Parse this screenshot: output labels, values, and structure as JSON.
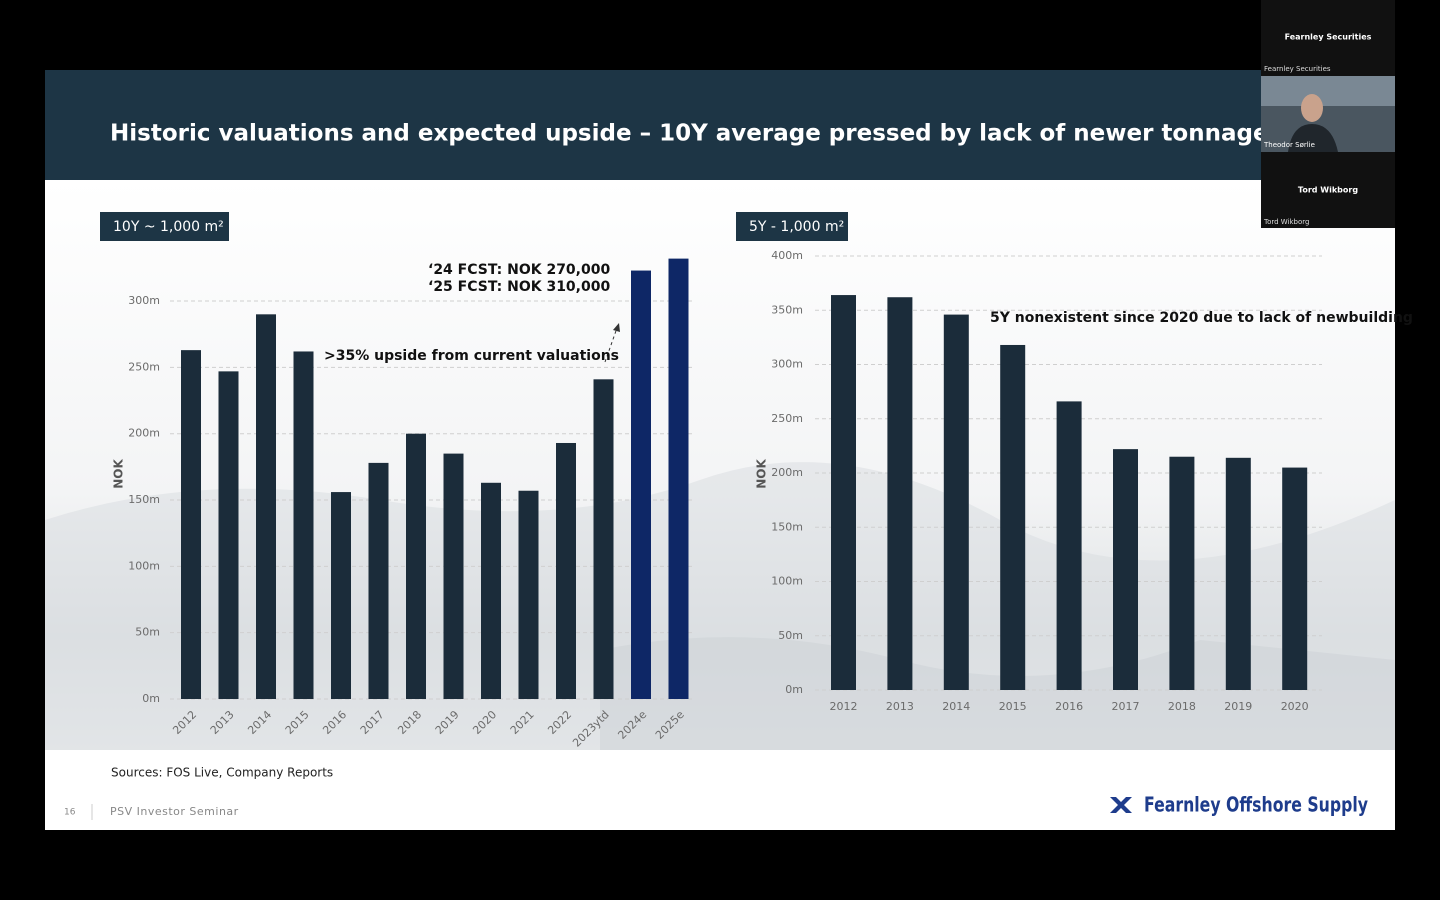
{
  "header": {
    "title": "Historic valuations and expected upside – 10Y average pressed by lack of newer tonnage"
  },
  "chart_data": [
    {
      "type": "bar",
      "badge": "10Y ~ 1,000 m²",
      "y_label": "NOK",
      "annotations": [
        "‘24 FCST: NOK 270,000",
        "‘25 FCST: NOK 310,000",
        ">35% upside from current valuations"
      ],
      "categories": [
        "2012",
        "2013",
        "2014",
        "2015",
        "2016",
        "2017",
        "2018",
        "2019",
        "2020",
        "2021",
        "2022",
        "2023ytd",
        "2024e",
        "2025e"
      ],
      "values": [
        263,
        247,
        290,
        262,
        156,
        178,
        200,
        185,
        163,
        157,
        193,
        241,
        323,
        332
      ],
      "colors": [
        "#1b2c3a",
        "#1b2c3a",
        "#1b2c3a",
        "#1b2c3a",
        "#1b2c3a",
        "#1b2c3a",
        "#1b2c3a",
        "#1b2c3a",
        "#1b2c3a",
        "#1b2c3a",
        "#1b2c3a",
        "#1b2c3a",
        "#0e2766",
        "#0e2766"
      ],
      "ylim": [
        0,
        340
      ],
      "yticks": [
        {
          "value": 0,
          "label": "0m"
        },
        {
          "value": 50,
          "label": "50m"
        },
        {
          "value": 100,
          "label": "100m"
        },
        {
          "value": 150,
          "label": "150m"
        },
        {
          "value": 200,
          "label": "200m"
        },
        {
          "value": 250,
          "label": "250m"
        },
        {
          "value": 300,
          "label": "300m"
        }
      ],
      "grid": true
    },
    {
      "type": "bar",
      "badge": "5Y - 1,000 m²",
      "y_label": "NOK",
      "annotations": [
        "5Y nonexistent since 2020 due to lack of newbuilding"
      ],
      "categories": [
        "2012",
        "2013",
        "2014",
        "2015",
        "2016",
        "2017",
        "2018",
        "2019",
        "2020"
      ],
      "values": [
        364,
        362,
        346,
        318,
        266,
        222,
        215,
        214,
        205
      ],
      "colors": [
        "#1b2c3a",
        "#1b2c3a",
        "#1b2c3a",
        "#1b2c3a",
        "#1b2c3a",
        "#1b2c3a",
        "#1b2c3a",
        "#1b2c3a",
        "#1b2c3a"
      ],
      "ylim": [
        0,
        400
      ],
      "yticks": [
        {
          "value": 0,
          "label": "0m"
        },
        {
          "value": 50,
          "label": "50m"
        },
        {
          "value": 100,
          "label": "100m"
        },
        {
          "value": 150,
          "label": "150m"
        },
        {
          "value": 200,
          "label": "200m"
        },
        {
          "value": 250,
          "label": "250m"
        },
        {
          "value": 300,
          "label": "300m"
        },
        {
          "value": 350,
          "label": "350m"
        },
        {
          "value": 400,
          "label": "400m"
        }
      ],
      "grid": true
    }
  ],
  "footer": {
    "sources": "Sources: FOS Live, Company Reports",
    "page": "16",
    "event": "PSV Investor Seminar",
    "logo": "Fearnley Offshore Supply"
  },
  "participants": [
    {
      "display": "Fearnley Securities",
      "label": "Fearnley Securities"
    },
    {
      "label": "Theodor Sørlie"
    },
    {
      "display": "Tord Wikborg",
      "label": "Tord Wikborg"
    }
  ]
}
